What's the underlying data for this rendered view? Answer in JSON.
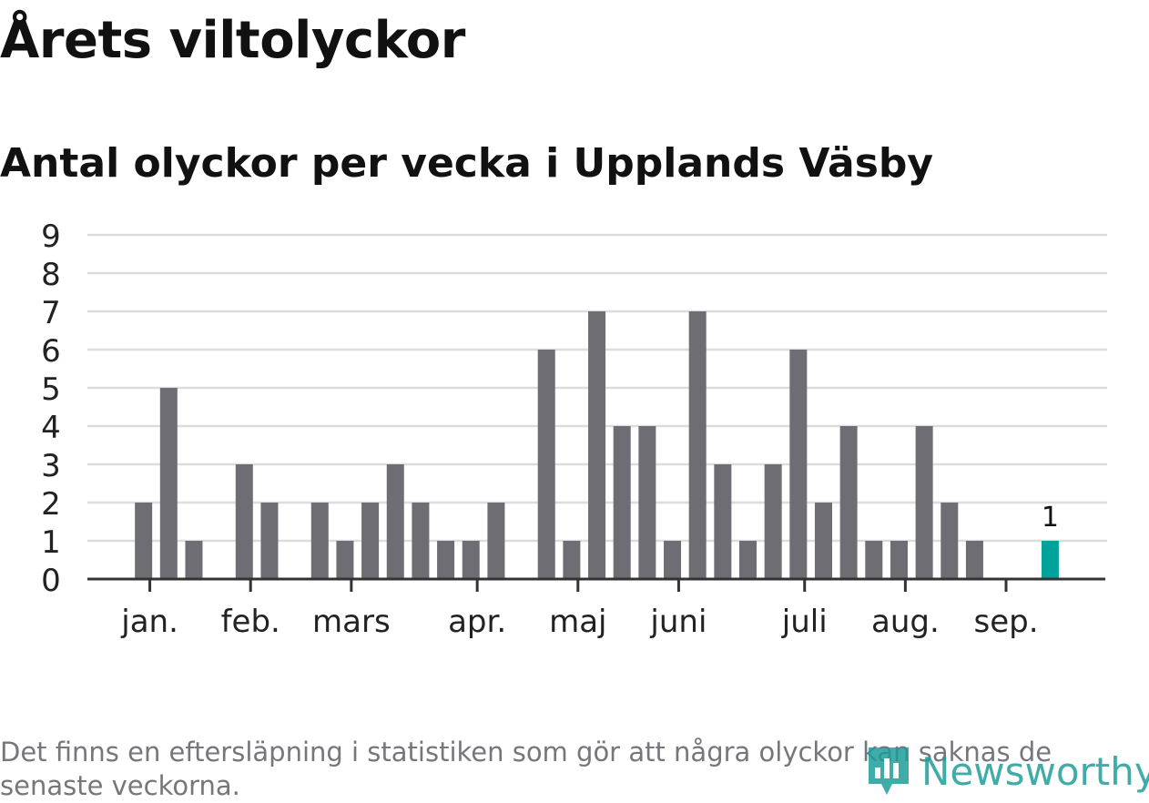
{
  "title": "Årets viltolyckor",
  "subtitle": "Antal olyckor per vecka i Upplands Väsby",
  "footnote": "Det finns en eftersläpning i statistiken som gör att några olyckor kan saknas de senaste veckorna.",
  "logo": {
    "text": "Newsworthy",
    "icon": "newsworthy-logo-icon"
  },
  "colors": {
    "bar": "#6e6d73",
    "highlight": "#00a39a",
    "grid": "#dcdcdc",
    "axis": "#333333",
    "text": "#222222",
    "footnote": "#76767c",
    "brand": "#1f9e99"
  },
  "chart_data": {
    "type": "bar",
    "unit": "vecka",
    "x": [
      1,
      2,
      3,
      4,
      5,
      6,
      7,
      8,
      9,
      10,
      11,
      12,
      13,
      14,
      15,
      16,
      17,
      18,
      19,
      20,
      21,
      22,
      23,
      24,
      25,
      26,
      27,
      28,
      29,
      30,
      31,
      32,
      33,
      34,
      35,
      36,
      37,
      38
    ],
    "values": [
      0,
      2,
      5,
      1,
      0,
      3,
      2,
      0,
      2,
      1,
      2,
      3,
      2,
      1,
      1,
      2,
      0,
      6,
      1,
      7,
      4,
      4,
      1,
      7,
      3,
      1,
      3,
      6,
      2,
      4,
      1,
      1,
      4,
      2,
      1,
      0,
      0,
      1
    ],
    "highlight_index": 37,
    "highlight_label": "1",
    "ylim": [
      0,
      9
    ],
    "yticks": [
      "0",
      "1",
      "2",
      "3",
      "4",
      "5",
      "6",
      "7",
      "8",
      "9"
    ],
    "month_ticks": [
      {
        "label": "jan.",
        "at": 2.25
      },
      {
        "label": "feb.",
        "at": 6.25
      },
      {
        "label": "mars",
        "at": 10.25
      },
      {
        "label": "apr.",
        "at": 15.25
      },
      {
        "label": "maj",
        "at": 19.25
      },
      {
        "label": "juni",
        "at": 23.25
      },
      {
        "label": "juli",
        "at": 28.25
      },
      {
        "label": "aug.",
        "at": 32.25
      },
      {
        "label": "sep.",
        "at": 36.25
      }
    ],
    "grid": true,
    "xlabel": "",
    "ylabel": ""
  }
}
